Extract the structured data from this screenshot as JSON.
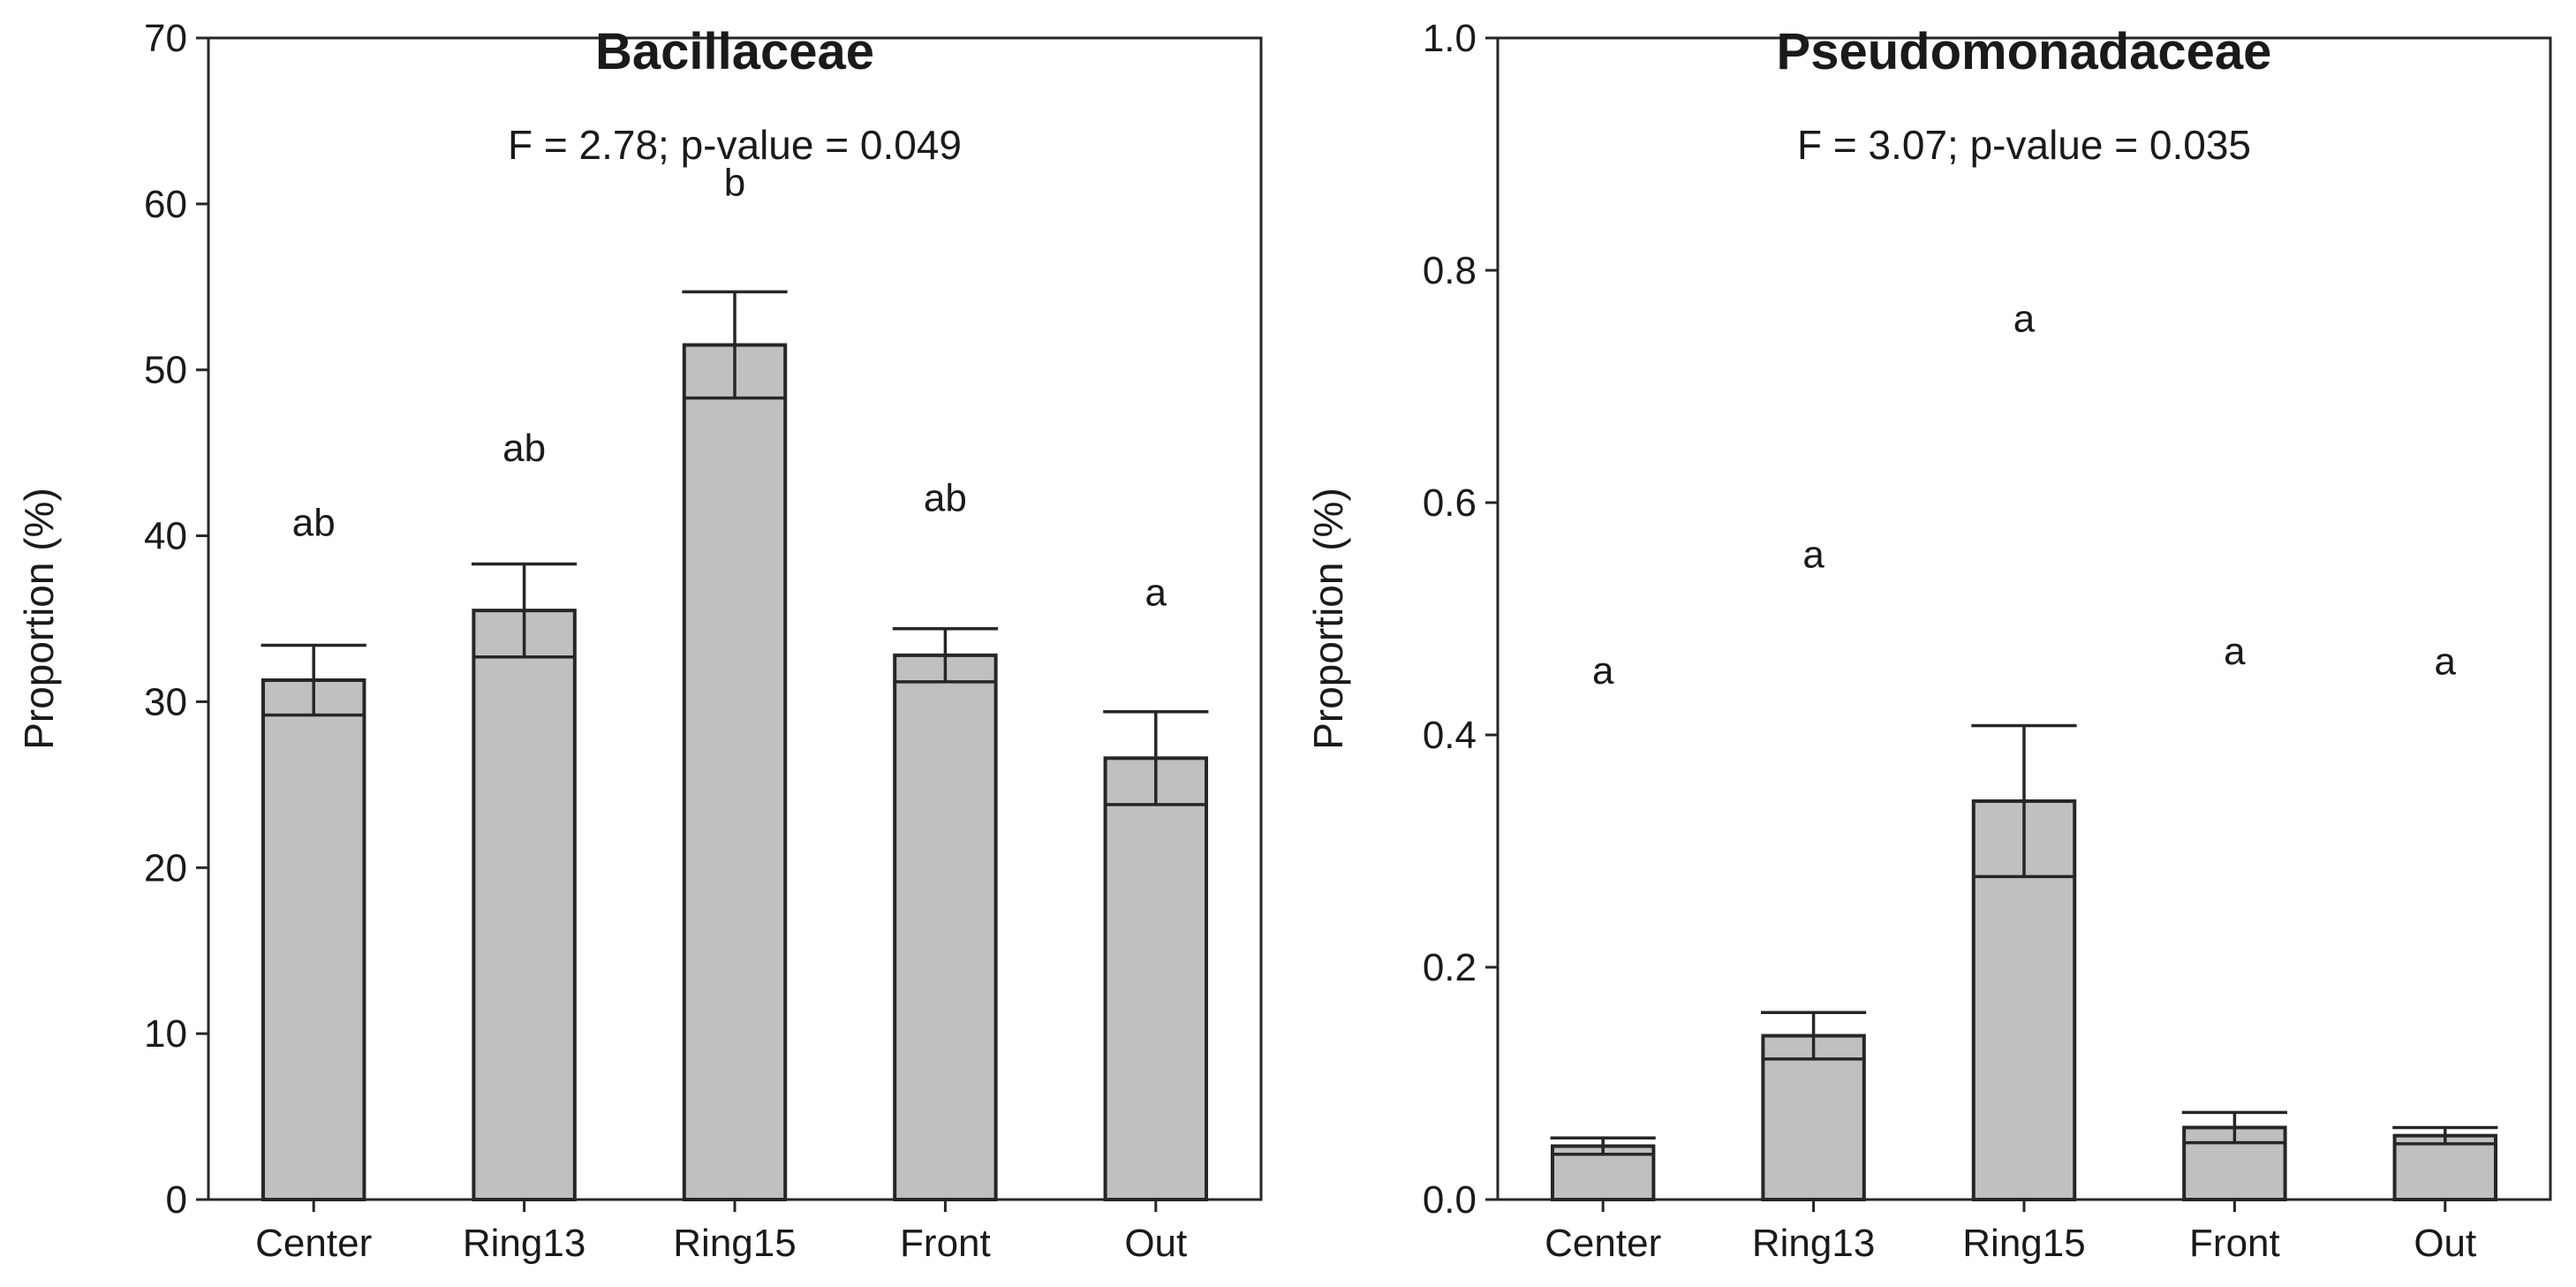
{
  "chart_data": [
    {
      "type": "bar",
      "title": "Bacillaceae",
      "subtitle": "F = 2.78; p-value = 0.049",
      "xlabel": "",
      "ylabel": "Proportion (%)",
      "categories": [
        "Center",
        "Ring13",
        "Ring15",
        "Front",
        "Out"
      ],
      "values": [
        31.3,
        35.5,
        51.5,
        32.8,
        26.6
      ],
      "error": [
        2.1,
        2.8,
        3.2,
        1.6,
        2.8
      ],
      "letters": [
        "ab",
        "ab",
        "b",
        "ab",
        "a"
      ],
      "letter_y": [
        40,
        44.5,
        60.5,
        41.5,
        35.8
      ],
      "ylim": [
        0,
        70
      ],
      "yticks": [
        0,
        10,
        20,
        30,
        40,
        50,
        60,
        70
      ],
      "ytick_labels": [
        "0",
        "10",
        "20",
        "30",
        "40",
        "50",
        "60",
        "70"
      ],
      "grid": false,
      "colors": {
        "bar_fill": "#c0c0c0",
        "bar_stroke": "#262626",
        "frame": "#262626"
      }
    },
    {
      "type": "bar",
      "title": "Pseudomonadaceae",
      "subtitle": "F = 3.07; p-value = 0.035",
      "xlabel": "",
      "ylabel": "Proportion (%)",
      "categories": [
        "Center",
        "Ring13",
        "Ring15",
        "Front",
        "Out"
      ],
      "values": [
        0.046,
        0.141,
        0.343,
        0.062,
        0.055
      ],
      "error": [
        0.007,
        0.02,
        0.065,
        0.013,
        0.007
      ],
      "letters": [
        "a",
        "a",
        "a",
        "a",
        "a"
      ],
      "letter_y": [
        0.444,
        0.544,
        0.747,
        0.461,
        0.452
      ],
      "ylim": [
        0,
        1.0
      ],
      "yticks": [
        0,
        0.2,
        0.4,
        0.6,
        0.8,
        1.0
      ],
      "ytick_labels": [
        "0.0",
        "0.2",
        "0.4",
        "0.6",
        "0.8",
        "1.0"
      ],
      "grid": false,
      "colors": {
        "bar_fill": "#c0c0c0",
        "bar_stroke": "#262626",
        "frame": "#262626"
      }
    }
  ]
}
